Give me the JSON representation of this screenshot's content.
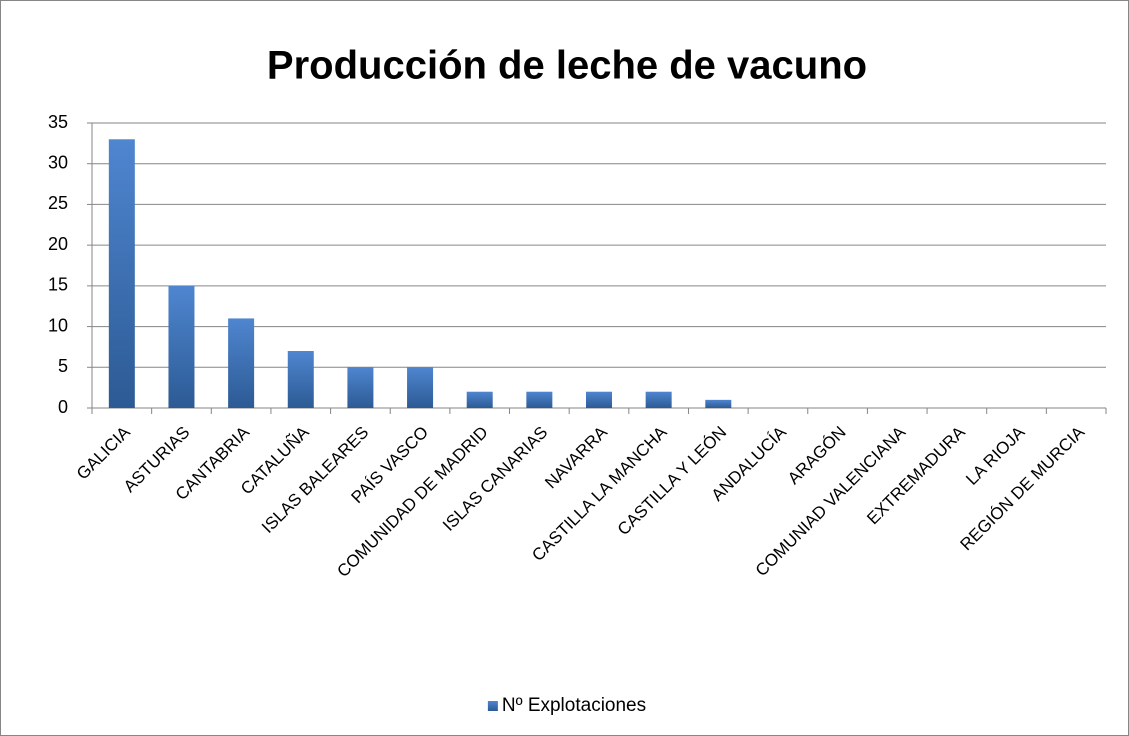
{
  "chart_data": {
    "type": "bar",
    "title": "Producción de leche de vacuno",
    "categories": [
      "GALICIA",
      "ASTURIAS",
      "CANTABRIA",
      "CATALUÑA",
      "ISLAS BALEARES",
      "PAÍS VASCO",
      "COMUNIDAD DE MADRID",
      "ISLAS CANARIAS",
      "NAVARRA",
      "CASTILLA LA MANCHA",
      "CASTILLA Y LEÓN",
      "ANDALUCÍA",
      "ARAGÓN",
      "COMUNIAD VALENCIANA",
      "EXTREMADURA",
      "LA RIOJA",
      "REGIÓN DE MURCIA"
    ],
    "series": [
      {
        "name": "Nº Explotaciones",
        "color": "#4f86d0",
        "values": [
          33,
          15,
          11,
          7,
          5,
          5,
          2,
          2,
          2,
          2,
          1,
          0,
          0,
          0,
          0,
          0,
          0
        ]
      }
    ],
    "ylim": [
      0,
      35
    ],
    "yticks": [
      0,
      5,
      10,
      15,
      20,
      25,
      30,
      35
    ],
    "grid": true,
    "legend": "bottom"
  }
}
